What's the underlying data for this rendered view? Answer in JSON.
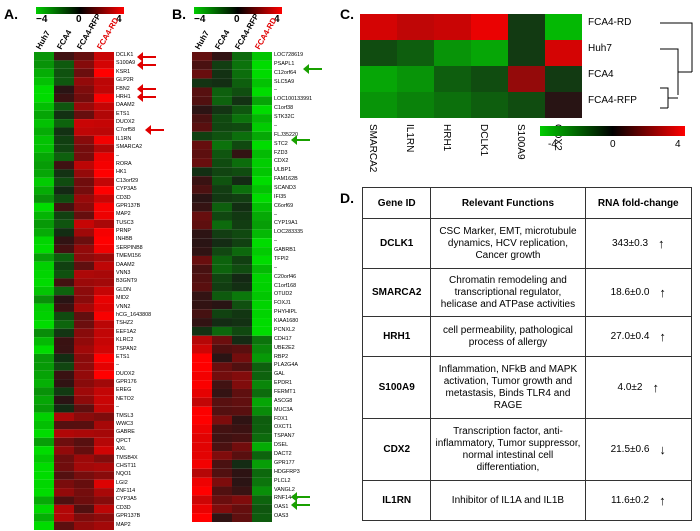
{
  "panels": {
    "a": "A.",
    "b": "B.",
    "c": "C.",
    "d": "D."
  },
  "colors": {
    "red": "#ff0000",
    "black": "#000000",
    "green": "#00cc00",
    "arrow_red": "#e00000",
    "arrow_green": "#19a000"
  },
  "scale_a": {
    "min": "−4",
    "mid": "0",
    "max": "4"
  },
  "scale_b": {
    "min": "−4",
    "mid": "0",
    "max": "4"
  },
  "scale_c": {
    "min": "-4",
    "mid": "0",
    "max": "4"
  },
  "columns": [
    "Huh7",
    "FCA4",
    "FCA4-RFP",
    "FCA4-RD"
  ],
  "panel_a_genes": [
    "DCLK1",
    "S100A9",
    "KSR1",
    "GLP2R",
    "FBN2",
    "HRH1",
    "DAAM2",
    "ETS1",
    "DUOX2",
    "C7orf58",
    "IL1RN",
    "SMARCA2",
    "–",
    "RORA",
    "HK1",
    "C13orf29",
    "CYP3A5",
    "CD3D",
    "GPR137B",
    "MAP2",
    "TUSC3",
    "PRNP",
    "INHBB",
    "SERPINB8",
    "TMEM156",
    "DAAM2",
    "VNN3",
    "B3GNT9",
    "GLDN",
    "MID2",
    "VNN2",
    "hCG_1643808",
    "TSHZ2",
    "EEF1A2",
    "KLRC2",
    "TSPAN2",
    "ETS1",
    "–",
    "DUOX2",
    "GPR176",
    "EREG",
    "NETO2",
    "–",
    "TMSL3",
    "WWC3",
    "GABRE",
    "QPCT",
    "AXL",
    "TMSB4X",
    "CHST11",
    "NQO1",
    "LGI2",
    "ZNF114",
    "CYP3A5",
    "CD3D",
    "GPR137B",
    "MAP2"
  ],
  "panel_b_genes": [
    "LOC728619",
    "PSAPL1",
    "C12orf64",
    "SLC5A9",
    "–",
    "LOC100133991",
    "C1orf38",
    "STK32C",
    "–",
    "FLJ35220",
    "STC2",
    "FZD3",
    "CDX2",
    "ULBP1",
    "FAM162B",
    "SCAND3",
    "IFI35",
    "C6orf69",
    "–",
    "CYP19A1",
    "LOC283335",
    "–",
    "GABRB1",
    "TFPI2",
    "–",
    "C20orf46",
    "C1orf168",
    "OTUD2",
    "FOXJ1",
    "PHYHIPL",
    "KIAA1680",
    "PCNXL2",
    "CDH17",
    "UBE2E2",
    "RBP2",
    "PLA2G4A",
    "GAL",
    "EPDR1",
    "FERMT1",
    "ASCG8",
    "MUC3A",
    "FDX1",
    "OXCT1",
    "TSPAN7",
    "DSEL",
    "DACT2",
    "GPR177",
    "HDGFRP3",
    "PLCL2",
    "VANGL2",
    "RNF144A",
    "OAS1",
    "OAS3"
  ],
  "panel_c": {
    "rows": [
      "FCA4-RD",
      "Huh7",
      "FCA4",
      "FCA4-RFP"
    ],
    "cols": [
      "SMARCA2",
      "IL1RN",
      "HRH1",
      "DCLK1",
      "S100A9",
      "CDX2"
    ]
  },
  "table": {
    "headers": [
      "Gene ID",
      "Relevant Functions",
      "RNA fold-change"
    ],
    "rows": [
      {
        "gene": "DCLK1",
        "functions": "CSC Marker,  EMT, microtubule dynamics, HCV replication,  Cancer growth",
        "fold": "343±0.3",
        "dir": "↑"
      },
      {
        "gene": "SMARCA2",
        "functions": "Chromatin remodeling and transcriptional regulator, helicase and ATPase activities",
        "fold": "18.6±0.0",
        "dir": "↑"
      },
      {
        "gene": "HRH1",
        "functions": "cell permeability, pathological process of allergy",
        "fold": "27.0±0.4",
        "dir": "↑"
      },
      {
        "gene": "S100A9",
        "functions": "Inflammation, NFkB and MAPK activation, Tumor growth and metastasis, Binds TLR4 and RAGE",
        "fold": "4.0±2",
        "dir": "↑"
      },
      {
        "gene": "CDX2",
        "functions": "Transcription factor, anti-inflammatory, Tumor suppressor, normal intestinal cell differentiation,",
        "fold": "21.5±0.6",
        "dir": "↓"
      },
      {
        "gene": "IL1RN",
        "functions": "Inhibitor of IL1A and IL1B",
        "fold": "11.6±0.2",
        "dir": "↑"
      }
    ]
  }
}
